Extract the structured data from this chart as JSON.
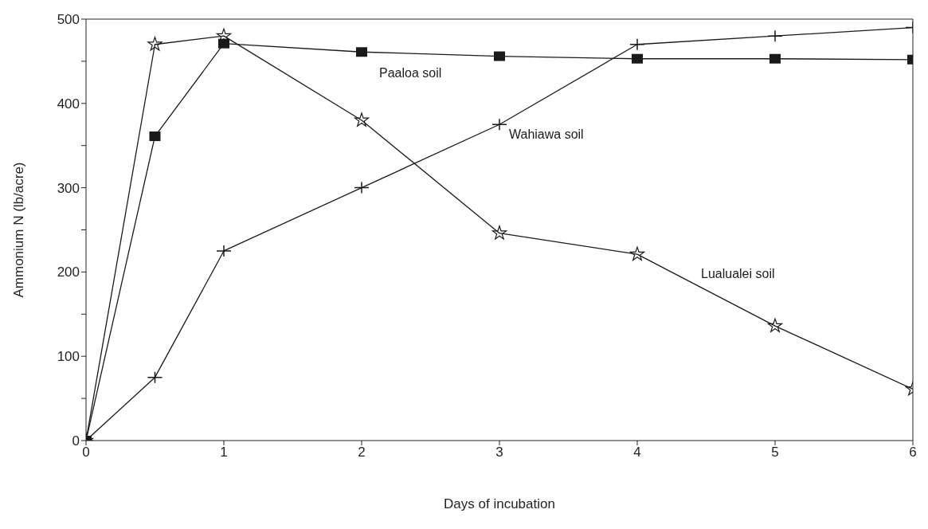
{
  "chart_data": {
    "type": "line",
    "xlabel": "Days of incubation",
    "ylabel": "Ammonium N (lb/acre)",
    "x": [
      0,
      0.5,
      1,
      2,
      3,
      4,
      5,
      6
    ],
    "series": [
      {
        "name": "Paaloa soil",
        "color": "#1a1a1a",
        "marker": "square",
        "values": [
          0,
          361,
          471,
          461,
          456,
          453,
          453,
          452
        ]
      },
      {
        "name": "Wahiawa soil",
        "color": "#1a1a1a",
        "marker": "cross",
        "values": [
          0,
          75,
          225,
          300,
          375,
          470,
          480,
          490
        ]
      },
      {
        "name": "Lualualei soil",
        "color": "#1a1a1a",
        "marker": "star",
        "values": [
          0,
          470,
          480,
          380,
          246,
          221,
          136,
          61
        ]
      }
    ],
    "xlim": [
      0,
      6
    ],
    "xticks": [
      0,
      1,
      2,
      3,
      4,
      5,
      6
    ],
    "ylim": [
      0,
      500
    ],
    "yticks": [
      0,
      {
        "value": 50,
        "label": null
      },
      100,
      {
        "value": 150,
        "label": null
      },
      200,
      {
        "value": 250,
        "label": null
      },
      300,
      {
        "value": 350,
        "label": null
      },
      400,
      {
        "value": 450,
        "label": null
      },
      500
    ],
    "grid": false,
    "legend": false,
    "line_style": "solid"
  }
}
